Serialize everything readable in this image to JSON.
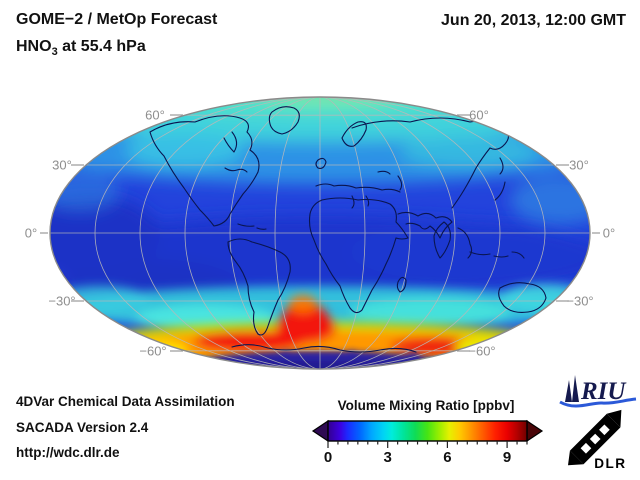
{
  "header": {
    "title_line1": "GOME−2 / MetOp Forecast",
    "species": "HNO",
    "species_subscript": "3",
    "level_text": " at 55.4 hPa",
    "datetime": "Jun 20, 2013, 12:00 GMT"
  },
  "map": {
    "latitude_labels_left": [
      "60°",
      "30°",
      "0°",
      "−30°",
      "−60°"
    ],
    "latitude_labels_right": [
      "60°",
      "30°",
      "0°",
      "−30°",
      "−60°"
    ],
    "graticule_color": "#b9b9b9",
    "coastline_color": "#0a1550",
    "rim_color": "#8a8a8a"
  },
  "footer": {
    "line1": "4DVar Chemical Data Assimilation",
    "line2": "SACADA Version 2.4",
    "line3": "http://wdc.dlr.de"
  },
  "colorbar": {
    "title": "Volume Mixing Ratio [ppbv]",
    "tick_labels": [
      "0",
      "3",
      "6",
      "9"
    ],
    "major_ticks": [
      0,
      3,
      6,
      9
    ],
    "minor_tick_step": 0.5,
    "range": [
      0,
      10
    ],
    "under_arrow_color": "#2e0a52",
    "over_arrow_color": "#4a0508",
    "gradient_stops": [
      {
        "v": 0.0,
        "c": "#33008f"
      },
      {
        "v": 0.6,
        "c": "#3c00e0"
      },
      {
        "v": 1.0,
        "c": "#1b2bff"
      },
      {
        "v": 1.6,
        "c": "#0066ff"
      },
      {
        "v": 2.2,
        "c": "#00a8ff"
      },
      {
        "v": 2.8,
        "c": "#00d4f4"
      },
      {
        "v": 3.2,
        "c": "#00ecdc"
      },
      {
        "v": 3.8,
        "c": "#00e49a"
      },
      {
        "v": 4.4,
        "c": "#10dc55"
      },
      {
        "v": 5.0,
        "c": "#46e414"
      },
      {
        "v": 5.6,
        "c": "#9cee00"
      },
      {
        "v": 6.1,
        "c": "#e6f000"
      },
      {
        "v": 6.6,
        "c": "#ffcc00"
      },
      {
        "v": 7.2,
        "c": "#ff9400"
      },
      {
        "v": 7.8,
        "c": "#ff5a00"
      },
      {
        "v": 8.4,
        "c": "#ff2000"
      },
      {
        "v": 9.0,
        "c": "#ea0000"
      },
      {
        "v": 9.5,
        "c": "#b40000"
      },
      {
        "v": 10.0,
        "c": "#700000"
      }
    ]
  },
  "logos": {
    "riu_label": "RIU",
    "riu_color": "#151a4e",
    "riu_wave_color": "#2b59d8",
    "dlr_label": "DLR",
    "dlr_color": "#000000"
  },
  "chart_data": {
    "type": "heatmap",
    "title": "GOME−2 / MetOp Forecast — HNO3 at 55.4 hPa",
    "datetime": "Jun 20, 2013, 12:00 GMT",
    "variable": "HNO3 volume mixing ratio",
    "units": "ppbv",
    "pressure_level_hPa": 55.4,
    "projection": "global ellipse (Mollweide-style), central meridian 0°, 30° graticule",
    "colorbar_label": "Volume Mixing Ratio [ppbv]",
    "colorbar_ticks": [
      0,
      3,
      6,
      9
    ],
    "colorbar_range": [
      0,
      10
    ],
    "latitude_axis_labels": [
      60,
      30,
      0,
      -30,
      -60
    ],
    "zonal_mean_estimates": {
      "latitudes": [
        85,
        70,
        55,
        40,
        25,
        10,
        -5,
        -20,
        -35,
        -48,
        -58,
        -66,
        -75,
        -85
      ],
      "values_ppbv": [
        4.3,
        4.0,
        3.3,
        2.6,
        1.9,
        1.7,
        1.8,
        2.2,
        3.2,
        4.2,
        7.5,
        6.0,
        1.0,
        0.6
      ]
    },
    "features": [
      {
        "name": "subantarctic collar maximum ring",
        "lat": -58,
        "lon_range": [
          -120,
          120
        ],
        "value_ppbv": "7–10"
      },
      {
        "name": "red maximum tongue",
        "lat": -52,
        "lon": 5,
        "value_ppbv": 9.5
      },
      {
        "name": "antarctic vortex minimum (dark indigo)",
        "lat": -80,
        "lon": 0,
        "value_ppbv": 0.7
      },
      {
        "name": "arctic cyan/green enhancement",
        "lat": 80,
        "lon": 0,
        "value_ppbv": 4.5
      },
      {
        "name": "tropical minimum band",
        "lat": 0,
        "lon": 0,
        "value_ppbv": 1.7
      }
    ]
  }
}
